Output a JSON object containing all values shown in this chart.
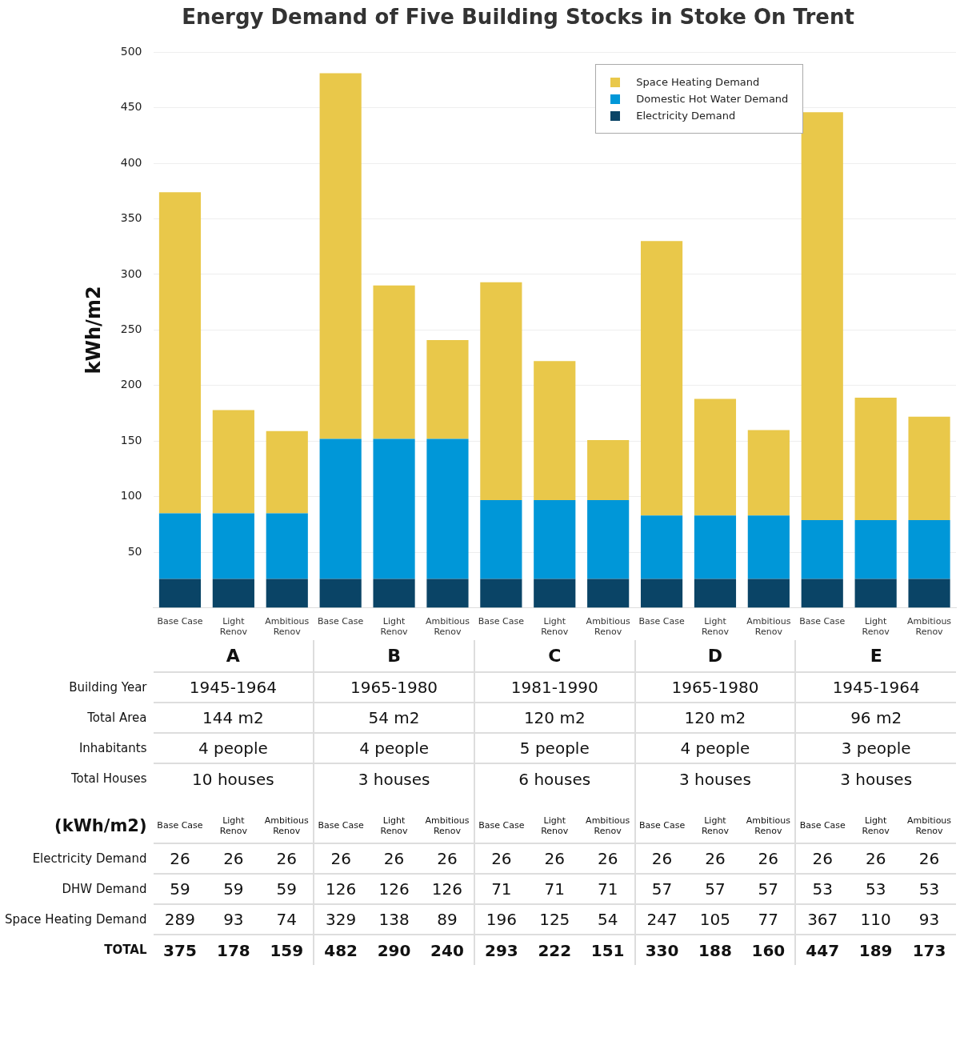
{
  "chart_data": {
    "type": "bar",
    "title": "Energy Demand of Five Building Stocks in Stoke On Trent",
    "ylabel": "kWh/m2",
    "categories": [
      "Base Case",
      "Light Renov",
      "Ambitious Renov",
      "Base Case",
      "Light Renov",
      "Ambitious Renov",
      "Base Case",
      "Light Renov",
      "Ambitious Renov",
      "Base Case",
      "Light Renov",
      "Ambitious Renov",
      "Base Case",
      "Light Renov",
      "Ambitious Renov"
    ],
    "series": [
      {
        "name": "Electricity Demand",
        "color": "#0a4466",
        "values": [
          26,
          26,
          26,
          26,
          26,
          26,
          26,
          26,
          26,
          26,
          26,
          26,
          26,
          26,
          26
        ]
      },
      {
        "name": "Domestic Hot Water Demand",
        "color": "#0097d8",
        "values": [
          59,
          59,
          59,
          126,
          126,
          126,
          71,
          71,
          71,
          57,
          57,
          57,
          53,
          53,
          53
        ]
      },
      {
        "name": "Space Heating Demand",
        "color": "#e9c84a",
        "values": [
          289,
          93,
          74,
          329,
          138,
          89,
          196,
          125,
          54,
          247,
          105,
          77,
          367,
          110,
          93
        ]
      }
    ],
    "stacked": true,
    "data_labels": true,
    "ylim": [
      0,
      500
    ],
    "yticks": [
      50,
      100,
      150,
      200,
      250,
      300,
      350,
      400,
      450,
      500
    ],
    "grid": "y",
    "legend": "top right",
    "annotations": [
      "A",
      "B",
      "C",
      "D",
      "E",
      "Building Year",
      "1945-1964",
      "1965-1980",
      "1981-1990",
      "1965-1980",
      "1945-1964",
      "Total Area",
      "144 m2",
      "54 m2",
      "120 m2",
      "120 m2",
      "96 m2",
      "Inhabitants",
      "4 people",
      "4 people",
      "5 people",
      "4 people",
      "3 people",
      "Total Houses",
      "10 houses",
      "3 houses",
      "6 houses",
      "3 houses",
      "3 houses",
      "(kWh/m2)",
      "Electricity Demand",
      "DHW Demand",
      "Space Heating Demand",
      "TOTAL",
      "375",
      "178",
      "159",
      "482",
      "290",
      "240",
      "293",
      "222",
      "151",
      "330",
      "188",
      "160",
      "447",
      "189",
      "173"
    ]
  }
}
